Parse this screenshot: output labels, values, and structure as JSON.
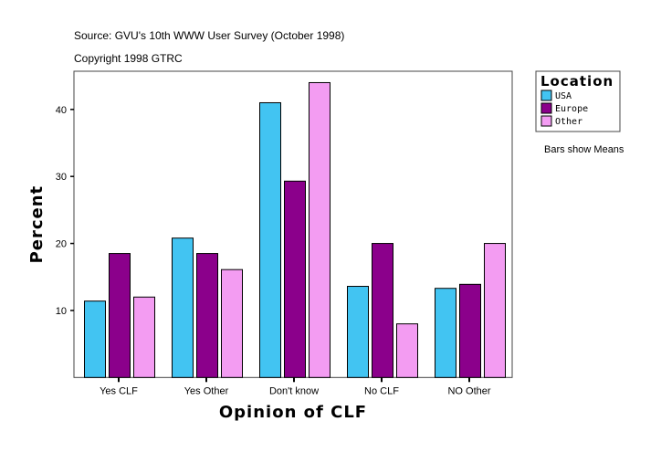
{
  "header": {
    "source": "Source: GVU's 10th WWW User Survey (October 1998)",
    "copyright": "Copyright 1998 GTRC"
  },
  "note": "Bars show Means",
  "chart_data": {
    "type": "bar",
    "xlabel": "Opinion of CLF",
    "ylabel": "Percent",
    "categories": [
      "Yes CLF",
      "Yes Other",
      "Don't know",
      "No CLF",
      "NO Other"
    ],
    "series": [
      {
        "name": "USA",
        "color": "#42C4F2",
        "values": [
          11.4,
          20.8,
          41.0,
          13.6,
          13.3
        ]
      },
      {
        "name": "Europe",
        "color": "#8B008B",
        "values": [
          18.5,
          18.5,
          29.3,
          20.0,
          13.9
        ]
      },
      {
        "name": "Other",
        "color": "#F39CF2",
        "values": [
          12.0,
          16.1,
          44.0,
          8.0,
          20.0
        ]
      }
    ],
    "yticks": [
      10,
      20,
      30,
      40
    ],
    "ylim": [
      0,
      45.7
    ],
    "legend": {
      "title": "Location",
      "placement": "right"
    },
    "grid": false
  }
}
